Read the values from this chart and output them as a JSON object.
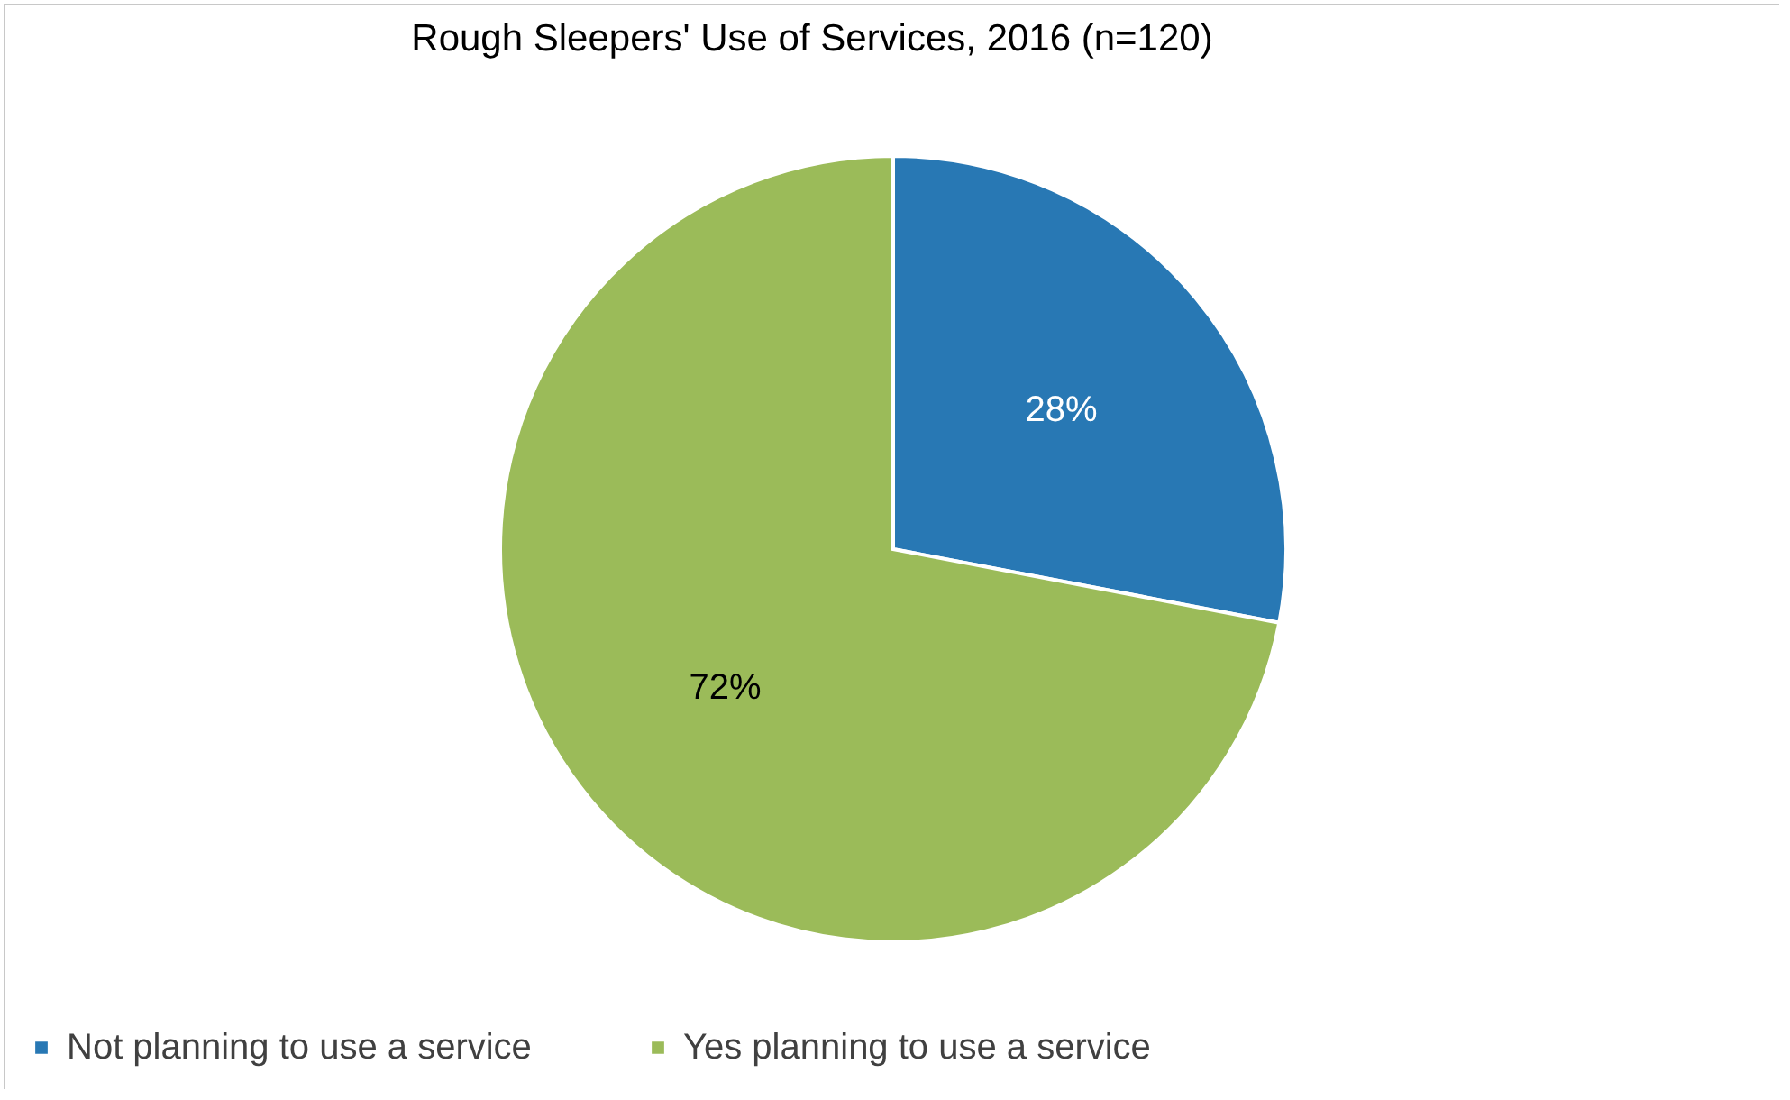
{
  "chart_data": {
    "type": "pie",
    "title": "Rough Sleepers' Use of Services, 2016 (n=120)",
    "categories": [
      "Not planning to use a service",
      "Yes planning to use a service"
    ],
    "values": [
      28,
      72
    ],
    "colors": [
      "#2878b4",
      "#9bbb59"
    ],
    "value_labels": [
      "28%",
      "72%"
    ],
    "legend": "bottom"
  }
}
